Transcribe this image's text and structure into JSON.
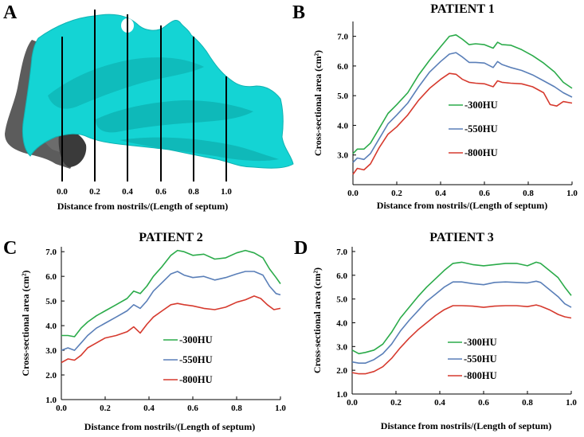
{
  "panel_letters": {
    "a": "A",
    "b": "B",
    "c": "C",
    "d": "D"
  },
  "panel_a": {
    "tick_labels": [
      "0.0",
      "0.2",
      "0.4",
      "0.6",
      "0.8",
      "1.0"
    ],
    "xlabel": "Distance from nostrils/(Length of septum)",
    "colors": {
      "model": "#12d6d6",
      "model_dark": "#0aa5a5",
      "face": "#5a5a5a"
    }
  },
  "colors": {
    "300": "#2bab4a",
    "550": "#5a7fb8",
    "800": "#d63a2e"
  },
  "chart_data": [
    {
      "type": "line",
      "title": "PATIENT 1",
      "xlabel": "Distance from nostrils/(Length of septum)",
      "ylabel": "Cross-sectional area (cm²)",
      "xlim": [
        0,
        1
      ],
      "ylim": [
        2,
        7.5
      ],
      "xticks": [
        "0.0",
        "0.2",
        "0.4",
        "0.6",
        "0.8",
        "1.0"
      ],
      "yticks": [
        "3.0",
        "4.0",
        "5.0",
        "6.0",
        "7.0"
      ],
      "legend": "left-middle",
      "series": [
        {
          "name": "-300HU",
          "color": "#2bab4a",
          "x": [
            0,
            0.02,
            0.05,
            0.08,
            0.12,
            0.16,
            0.2,
            0.25,
            0.3,
            0.35,
            0.4,
            0.44,
            0.47,
            0.5,
            0.53,
            0.56,
            0.6,
            0.64,
            0.66,
            0.68,
            0.72,
            0.77,
            0.82,
            0.87,
            0.92,
            0.96,
            1.0
          ],
          "y": [
            3.05,
            3.2,
            3.2,
            3.4,
            3.9,
            4.4,
            4.7,
            5.1,
            5.7,
            6.2,
            6.65,
            7.0,
            7.05,
            6.9,
            6.72,
            6.75,
            6.72,
            6.6,
            6.8,
            6.72,
            6.7,
            6.55,
            6.35,
            6.1,
            5.8,
            5.45,
            5.25
          ]
        },
        {
          "name": "-550HU",
          "color": "#5a7fb8",
          "x": [
            0,
            0.02,
            0.05,
            0.08,
            0.12,
            0.16,
            0.2,
            0.25,
            0.3,
            0.35,
            0.4,
            0.44,
            0.47,
            0.5,
            0.53,
            0.56,
            0.6,
            0.64,
            0.66,
            0.68,
            0.72,
            0.77,
            0.82,
            0.87,
            0.92,
            0.96,
            1.0
          ],
          "y": [
            2.75,
            2.9,
            2.85,
            3.05,
            3.55,
            4.05,
            4.35,
            4.75,
            5.3,
            5.8,
            6.15,
            6.4,
            6.45,
            6.3,
            6.12,
            6.12,
            6.1,
            5.95,
            6.15,
            6.05,
            5.95,
            5.85,
            5.7,
            5.5,
            5.3,
            5.1,
            4.95
          ]
        },
        {
          "name": "-800HU",
          "color": "#d63a2e",
          "x": [
            0,
            0.02,
            0.05,
            0.08,
            0.12,
            0.16,
            0.2,
            0.25,
            0.3,
            0.35,
            0.4,
            0.44,
            0.47,
            0.5,
            0.53,
            0.56,
            0.6,
            0.64,
            0.66,
            0.68,
            0.72,
            0.77,
            0.82,
            0.87,
            0.9,
            0.93,
            0.96,
            1.0
          ],
          "y": [
            2.35,
            2.55,
            2.5,
            2.7,
            3.25,
            3.7,
            3.95,
            4.35,
            4.85,
            5.25,
            5.55,
            5.75,
            5.72,
            5.55,
            5.45,
            5.42,
            5.4,
            5.3,
            5.5,
            5.45,
            5.42,
            5.4,
            5.3,
            5.1,
            4.7,
            4.65,
            4.8,
            4.75
          ]
        }
      ]
    },
    {
      "type": "line",
      "title": "PATIENT 2",
      "xlabel": "Distance from nostrils/(Length of septum)",
      "ylabel": "Cross-sectional area (cm²)",
      "xlim": [
        0,
        1
      ],
      "ylim": [
        1,
        7.2
      ],
      "xticks": [
        "0.0",
        "0.2",
        "0.4",
        "0.6",
        "0.8",
        "1.0"
      ],
      "yticks": [
        "1.0",
        "2.0",
        "3.0",
        "4.0",
        "5.0",
        "6.0",
        "7.0"
      ],
      "legend": "center",
      "series": [
        {
          "name": "-300HU",
          "color": "#2bab4a",
          "x": [
            0,
            0.03,
            0.06,
            0.09,
            0.12,
            0.16,
            0.2,
            0.25,
            0.3,
            0.33,
            0.36,
            0.39,
            0.42,
            0.46,
            0.5,
            0.53,
            0.56,
            0.6,
            0.65,
            0.7,
            0.75,
            0.8,
            0.84,
            0.88,
            0.92,
            0.95,
            0.98,
            1.0
          ],
          "y": [
            3.6,
            3.6,
            3.55,
            3.9,
            4.15,
            4.4,
            4.6,
            4.85,
            5.1,
            5.4,
            5.3,
            5.6,
            6.0,
            6.4,
            6.85,
            7.05,
            7.0,
            6.85,
            6.9,
            6.7,
            6.75,
            6.95,
            7.05,
            6.95,
            6.75,
            6.3,
            5.95,
            5.7
          ]
        },
        {
          "name": "-550HU",
          "color": "#5a7fb8",
          "x": [
            0,
            0.03,
            0.06,
            0.09,
            0.12,
            0.16,
            0.2,
            0.25,
            0.3,
            0.33,
            0.36,
            0.39,
            0.42,
            0.46,
            0.5,
            0.53,
            0.56,
            0.6,
            0.65,
            0.7,
            0.75,
            0.8,
            0.84,
            0.88,
            0.92,
            0.95,
            0.98,
            1.0
          ],
          "y": [
            3.0,
            3.1,
            3.0,
            3.3,
            3.6,
            3.9,
            4.1,
            4.35,
            4.6,
            4.85,
            4.7,
            5.0,
            5.4,
            5.75,
            6.1,
            6.2,
            6.05,
            5.95,
            6.0,
            5.85,
            5.95,
            6.1,
            6.2,
            6.2,
            6.05,
            5.6,
            5.3,
            5.25
          ]
        },
        {
          "name": "-800HU",
          "color": "#d63a2e",
          "x": [
            0,
            0.03,
            0.06,
            0.09,
            0.12,
            0.16,
            0.2,
            0.25,
            0.3,
            0.33,
            0.36,
            0.39,
            0.42,
            0.46,
            0.5,
            0.53,
            0.56,
            0.6,
            0.65,
            0.7,
            0.75,
            0.8,
            0.84,
            0.88,
            0.91,
            0.94,
            0.97,
            1.0
          ],
          "y": [
            2.5,
            2.65,
            2.6,
            2.8,
            3.1,
            3.3,
            3.5,
            3.6,
            3.75,
            3.95,
            3.7,
            4.05,
            4.35,
            4.6,
            4.85,
            4.9,
            4.85,
            4.8,
            4.7,
            4.65,
            4.75,
            4.95,
            5.05,
            5.2,
            5.1,
            4.85,
            4.65,
            4.7
          ]
        }
      ]
    },
    {
      "type": "line",
      "title": "PATIENT 3",
      "xlabel": "Distance from nostrils/(Length of septum)",
      "ylabel": "Cross-sectional area (cm²)",
      "xlim": [
        0,
        1
      ],
      "ylim": [
        1,
        7.2
      ],
      "xticks": [
        "0.0",
        "0.2",
        "0.4",
        "0.6",
        "0.8",
        "1.0"
      ],
      "yticks": [
        "1.0",
        "2.0",
        "3.0",
        "4.0",
        "5.0",
        "6.0",
        "7.0"
      ],
      "legend": "center",
      "series": [
        {
          "name": "-300HU",
          "color": "#2bab4a",
          "x": [
            0,
            0.03,
            0.06,
            0.1,
            0.14,
            0.18,
            0.22,
            0.26,
            0.3,
            0.34,
            0.38,
            0.42,
            0.46,
            0.5,
            0.55,
            0.6,
            0.65,
            0.7,
            0.75,
            0.8,
            0.84,
            0.86,
            0.9,
            0.94,
            0.97,
            1.0
          ],
          "y": [
            2.85,
            2.7,
            2.75,
            2.85,
            3.1,
            3.6,
            4.2,
            4.65,
            5.1,
            5.5,
            5.85,
            6.2,
            6.5,
            6.55,
            6.45,
            6.4,
            6.45,
            6.5,
            6.5,
            6.4,
            6.55,
            6.5,
            6.2,
            5.9,
            5.5,
            5.15
          ]
        },
        {
          "name": "-550HU",
          "color": "#5a7fb8",
          "x": [
            0,
            0.03,
            0.06,
            0.1,
            0.14,
            0.18,
            0.22,
            0.26,
            0.3,
            0.34,
            0.38,
            0.42,
            0.46,
            0.5,
            0.55,
            0.6,
            0.65,
            0.7,
            0.75,
            0.8,
            0.84,
            0.86,
            0.9,
            0.94,
            0.97,
            1.0
          ],
          "y": [
            2.35,
            2.3,
            2.3,
            2.45,
            2.7,
            3.1,
            3.65,
            4.1,
            4.5,
            4.9,
            5.2,
            5.5,
            5.72,
            5.72,
            5.65,
            5.6,
            5.7,
            5.72,
            5.7,
            5.68,
            5.75,
            5.7,
            5.4,
            5.1,
            4.8,
            4.65
          ]
        },
        {
          "name": "-800HU",
          "color": "#d63a2e",
          "x": [
            0,
            0.03,
            0.06,
            0.1,
            0.14,
            0.18,
            0.22,
            0.26,
            0.3,
            0.34,
            0.38,
            0.42,
            0.46,
            0.5,
            0.55,
            0.6,
            0.65,
            0.7,
            0.75,
            0.8,
            0.84,
            0.86,
            0.9,
            0.94,
            0.97,
            1.0
          ],
          "y": [
            1.9,
            1.85,
            1.85,
            1.95,
            2.15,
            2.5,
            2.95,
            3.35,
            3.7,
            4.0,
            4.3,
            4.55,
            4.72,
            4.72,
            4.7,
            4.65,
            4.7,
            4.72,
            4.72,
            4.68,
            4.75,
            4.7,
            4.55,
            4.35,
            4.25,
            4.2
          ]
        }
      ]
    }
  ]
}
